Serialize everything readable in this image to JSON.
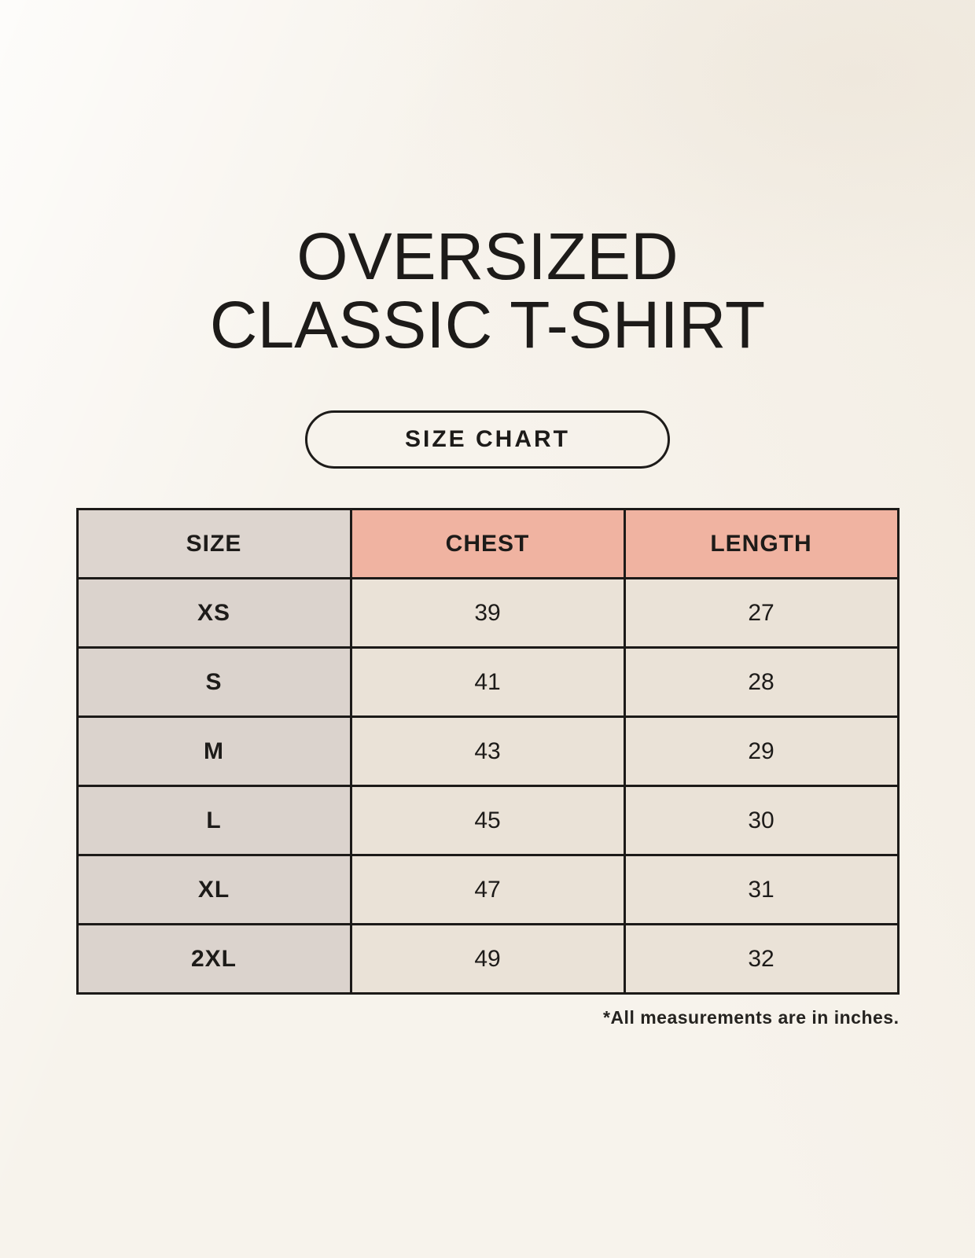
{
  "page": {
    "title_line1": "OVERSIZED",
    "title_line2": "CLASSIC T-SHIRT"
  },
  "size_chart_button": {
    "label": "SIZE CHART"
  },
  "table": {
    "headers": [
      "SIZE",
      "CHEST",
      "LENGTH"
    ],
    "rows": [
      {
        "size": "XS",
        "chest": "39",
        "length": "27"
      },
      {
        "size": "S",
        "chest": "41",
        "length": "28"
      },
      {
        "size": "M",
        "chest": "43",
        "length": "29"
      },
      {
        "size": "L",
        "chest": "45",
        "length": "30"
      },
      {
        "size": "XL",
        "chest": "47",
        "length": "31"
      },
      {
        "size": "2XL",
        "chest": "49",
        "length": "32"
      }
    ]
  },
  "footnote": "*All measurements are in inches.",
  "colors": {
    "background": "#f7f3ec",
    "header_pink": "#f0b3a1",
    "header_gray": "#ddd5cf",
    "size_column_gray": "#dbd3cd",
    "value_cell_cream": "#eae2d7",
    "border_black": "#1c1a18",
    "text_black": "#1d1b19"
  },
  "chart_data": {
    "type": "table",
    "title": "OVERSIZED CLASSIC T-SHIRT",
    "subtitle": "SIZE CHART",
    "columns": [
      "SIZE",
      "CHEST",
      "LENGTH"
    ],
    "rows": [
      [
        "XS",
        39,
        27
      ],
      [
        "S",
        41,
        28
      ],
      [
        "M",
        43,
        29
      ],
      [
        "L",
        45,
        30
      ],
      [
        "XL",
        47,
        31
      ],
      [
        "2XL",
        49,
        32
      ]
    ],
    "units": "inches",
    "note": "*All measurements are in inches."
  }
}
